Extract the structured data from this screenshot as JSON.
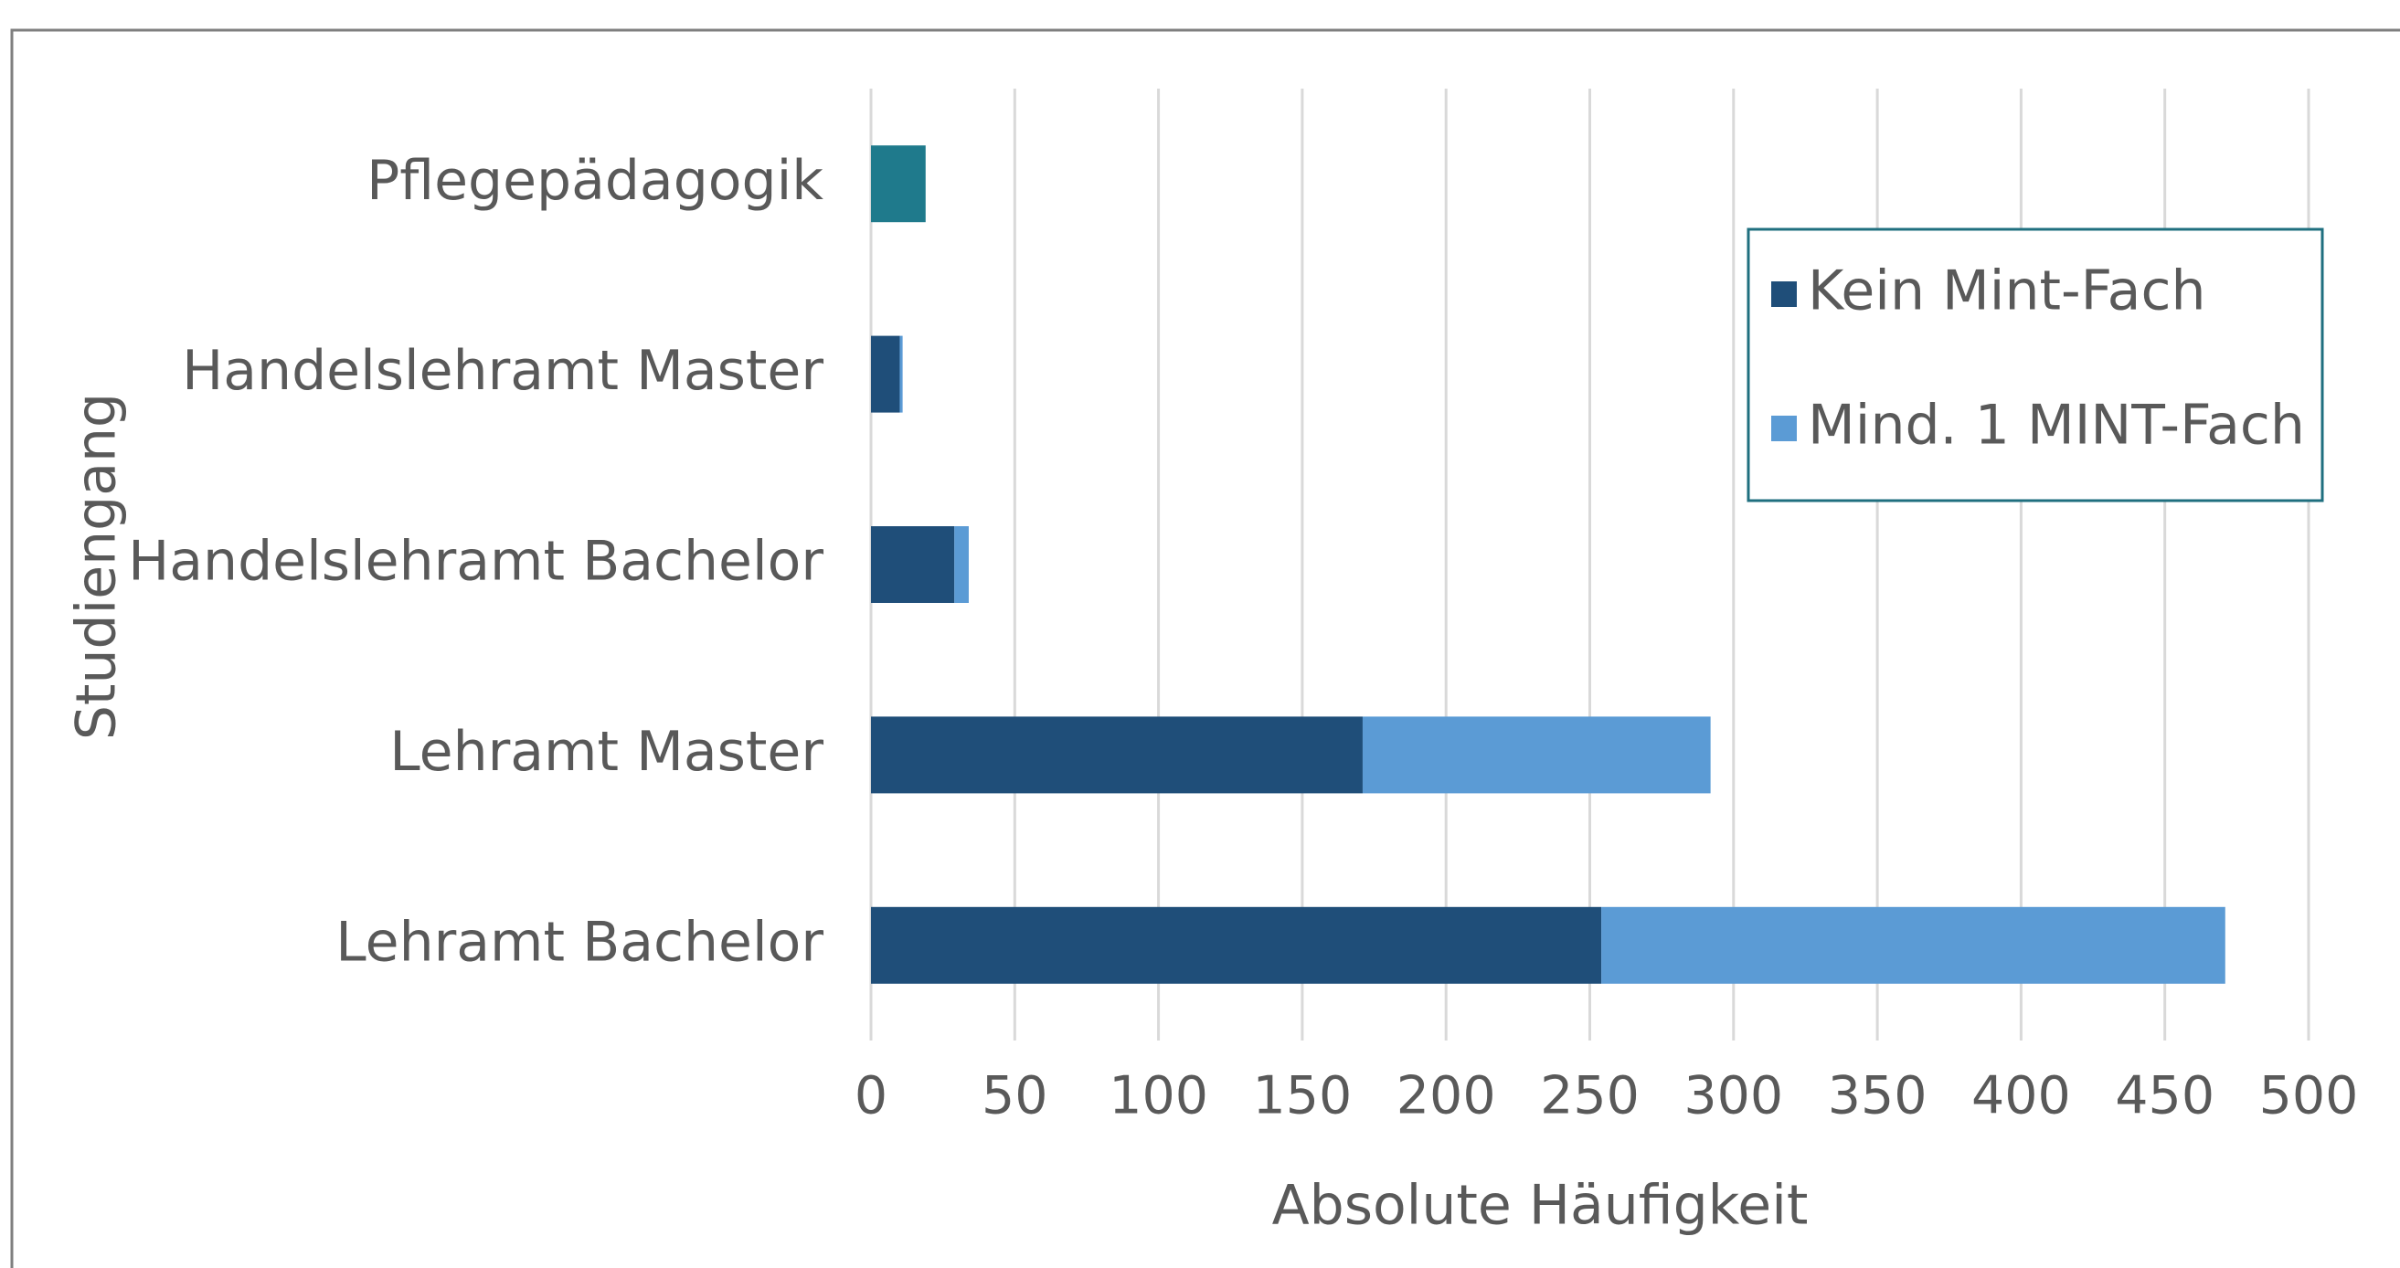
{
  "chart_data": {
    "type": "stacked_barh",
    "categories": [
      "Lehramt Bachelor",
      "Lehramt Master",
      "Handelslehramt Bachelor",
      "Handelslehramt Master",
      "Pflegepädagogik"
    ],
    "series": [
      {
        "name": "Kein Mint-Fach",
        "color": "#1f4e79",
        "point_colors": [
          "#1f4e79",
          "#1f4e79",
          "#1f4e79",
          "#1f4e79",
          "#1f7a8c"
        ],
        "values": [
          254,
          171,
          29,
          10,
          19
        ]
      },
      {
        "name": "Mind. 1 MINT-Fach",
        "color": "#5b9bd5",
        "values": [
          217,
          121,
          5,
          1,
          0
        ]
      }
    ],
    "xlabel": "Absolute Häufigkeit",
    "ylabel": "Studiengang",
    "xlim": [
      0,
      500
    ],
    "xticks": [
      0,
      50,
      100,
      150,
      200,
      250,
      300,
      350,
      400,
      450,
      500
    ],
    "grid": true,
    "legend": "upper right"
  }
}
